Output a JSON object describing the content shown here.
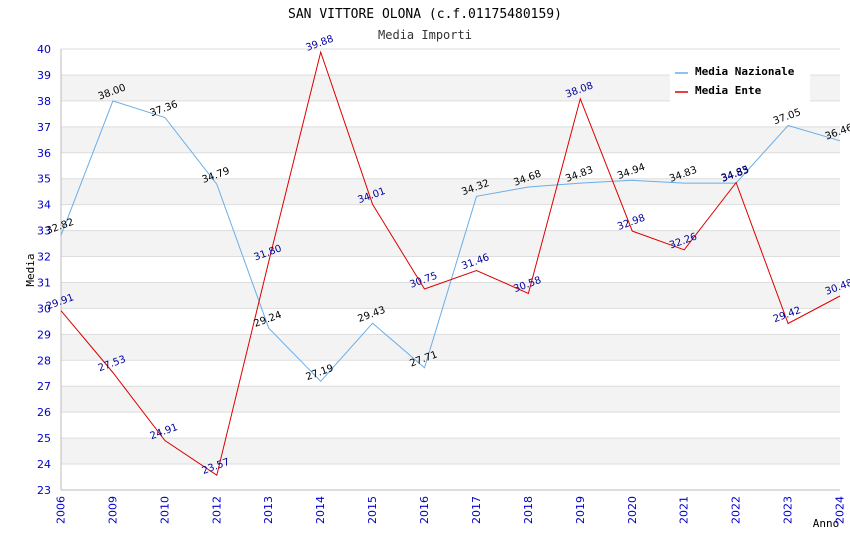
{
  "chart_data": {
    "type": "line",
    "title": "SAN VITTORE OLONA (c.f.01175480159)",
    "subtitle": "Media Importi",
    "xlabel": "Anno",
    "ylabel": "Media",
    "ylim": [
      23,
      40
    ],
    "yticks": [
      "23",
      "24",
      "25",
      "26",
      "27",
      "28",
      "29",
      "30",
      "31",
      "32",
      "33",
      "34",
      "35",
      "36",
      "37",
      "38",
      "39",
      "40"
    ],
    "categories": [
      "2006",
      "2009",
      "2010",
      "2012",
      "2013",
      "2014",
      "2015",
      "2016",
      "2017",
      "2018",
      "2019",
      "2020",
      "2021",
      "2022",
      "2023",
      "2024"
    ],
    "grid": true,
    "legend_position": "top-right",
    "series": [
      {
        "name": "Media Nazionale",
        "color": "#6aaee8",
        "label_color": "#000000",
        "values": [
          32.82,
          38.0,
          37.36,
          34.79,
          29.24,
          27.19,
          29.43,
          27.71,
          34.32,
          34.68,
          34.83,
          34.94,
          34.83,
          34.83,
          37.05,
          36.46
        ],
        "labels": [
          "32.82",
          "38.00",
          "37.36",
          "34.79",
          "29.24",
          "27.19",
          "29.43",
          "27.71",
          "34.32",
          "34.68",
          "34.83",
          "34.94",
          "34.83",
          "34.83",
          "37.05",
          "36.46"
        ]
      },
      {
        "name": "Media Ente",
        "color": "#dd0000",
        "label_color": "#000099",
        "values": [
          29.91,
          27.53,
          24.91,
          23.57,
          31.8,
          39.88,
          34.01,
          30.75,
          31.46,
          30.58,
          38.08,
          32.98,
          32.26,
          34.85,
          29.42,
          30.48
        ],
        "labels": [
          "29.91",
          "27.53",
          "24.91",
          "23.57",
          "31.80",
          "39.88",
          "34.01",
          "30.75",
          "31.46",
          "30.58",
          "38.08",
          "32.98",
          "32.26",
          "34.85",
          "29.42",
          "30.48"
        ]
      }
    ]
  }
}
